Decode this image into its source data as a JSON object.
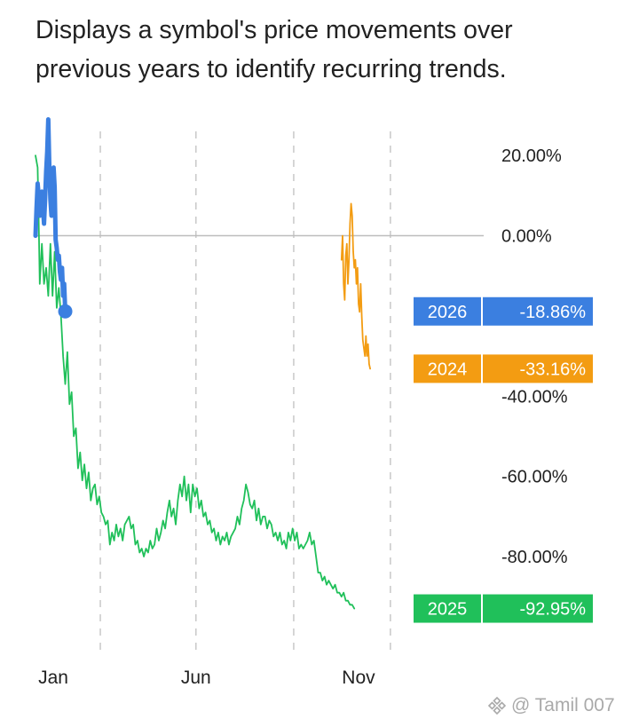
{
  "description": "Displays a symbol's price movements over\nprevious years to identify recurring trends.",
  "watermark": {
    "text": "@ Tamil 007",
    "logo_icon": "binance-logo-icon"
  },
  "chart_data": {
    "type": "line",
    "title": "",
    "xlabel": "",
    "ylabel": "",
    "ylim": [
      -105,
      30
    ],
    "x_unit": "day of year",
    "xlim": [
      1,
      366
    ],
    "x_ticks": [
      {
        "label": "Jan",
        "x": 1
      },
      {
        "label": "Jun",
        "x": 152
      },
      {
        "label": "Nov",
        "x": 305
      }
    ],
    "x_gridlines": [
      62,
      152,
      244,
      335
    ],
    "y_ticks": [
      {
        "label": "20.00%",
        "value": 20
      },
      {
        "label": "0.00%",
        "value": 0
      },
      {
        "label": "-40.00%",
        "value": -40
      },
      {
        "label": "-60.00%",
        "value": -60
      },
      {
        "label": "-80.00%",
        "value": -80
      }
    ],
    "zero_line": true,
    "series": [
      {
        "name": "2025",
        "color": "#20c05a",
        "final_label": "-92.95%",
        "points": [
          [
            1,
            20
          ],
          [
            3,
            17
          ],
          [
            4,
            4
          ],
          [
            5,
            -12
          ],
          [
            7,
            -2
          ],
          [
            9,
            -12
          ],
          [
            11,
            -8
          ],
          [
            13,
            -15
          ],
          [
            15,
            -2
          ],
          [
            17,
            -15
          ],
          [
            19,
            -4
          ],
          [
            21,
            -18
          ],
          [
            23,
            -13
          ],
          [
            25,
            -20
          ],
          [
            27,
            -30
          ],
          [
            29,
            -37
          ],
          [
            31,
            -29
          ],
          [
            33,
            -42
          ],
          [
            35,
            -39
          ],
          [
            37,
            -50
          ],
          [
            39,
            -48
          ],
          [
            41,
            -58
          ],
          [
            43,
            -54
          ],
          [
            45,
            -61
          ],
          [
            47,
            -57
          ],
          [
            49,
            -63
          ],
          [
            51,
            -59
          ],
          [
            53,
            -66
          ],
          [
            55,
            -63
          ],
          [
            57,
            -62
          ],
          [
            59,
            -67
          ],
          [
            61,
            -65
          ],
          [
            63,
            -69
          ],
          [
            65,
            -70
          ],
          [
            67,
            -72
          ],
          [
            69,
            -71
          ],
          [
            71,
            -77
          ],
          [
            73,
            -74
          ],
          [
            75,
            -76
          ],
          [
            77,
            -72
          ],
          [
            79,
            -75
          ],
          [
            81,
            -73
          ],
          [
            83,
            -76
          ],
          [
            85,
            -72
          ],
          [
            87,
            -71
          ],
          [
            89,
            -70
          ],
          [
            91,
            -73
          ],
          [
            93,
            -72
          ],
          [
            95,
            -77
          ],
          [
            97,
            -76
          ],
          [
            99,
            -79
          ],
          [
            101,
            -78
          ],
          [
            103,
            -80
          ],
          [
            105,
            -78
          ],
          [
            107,
            -79
          ],
          [
            109,
            -76
          ],
          [
            111,
            -78
          ],
          [
            113,
            -77
          ],
          [
            115,
            -73
          ],
          [
            117,
            -76
          ],
          [
            119,
            -74
          ],
          [
            121,
            -71
          ],
          [
            123,
            -73
          ],
          [
            125,
            -69
          ],
          [
            127,
            -66
          ],
          [
            129,
            -70
          ],
          [
            131,
            -68
          ],
          [
            133,
            -72
          ],
          [
            135,
            -66
          ],
          [
            137,
            -62
          ],
          [
            139,
            -65
          ],
          [
            141,
            -60
          ],
          [
            143,
            -66
          ],
          [
            145,
            -62
          ],
          [
            147,
            -69
          ],
          [
            149,
            -62
          ],
          [
            151,
            -65
          ],
          [
            153,
            -63
          ],
          [
            155,
            -68
          ],
          [
            157,
            -66
          ],
          [
            159,
            -70
          ],
          [
            161,
            -69
          ],
          [
            163,
            -72
          ],
          [
            165,
            -71
          ],
          [
            167,
            -74
          ],
          [
            169,
            -73
          ],
          [
            171,
            -76
          ],
          [
            173,
            -74
          ],
          [
            175,
            -77
          ],
          [
            177,
            -75
          ],
          [
            179,
            -76
          ],
          [
            181,
            -74
          ],
          [
            183,
            -77
          ],
          [
            185,
            -75
          ],
          [
            187,
            -74
          ],
          [
            189,
            -73
          ],
          [
            191,
            -70
          ],
          [
            193,
            -72
          ],
          [
            195,
            -68
          ],
          [
            197,
            -66
          ],
          [
            199,
            -62
          ],
          [
            201,
            -64
          ],
          [
            203,
            -67
          ],
          [
            205,
            -68
          ],
          [
            207,
            -66
          ],
          [
            209,
            -71
          ],
          [
            211,
            -68
          ],
          [
            213,
            -72
          ],
          [
            215,
            -70
          ],
          [
            217,
            -70
          ],
          [
            219,
            -73
          ],
          [
            221,
            -71
          ],
          [
            223,
            -72
          ],
          [
            225,
            -75
          ],
          [
            227,
            -74
          ],
          [
            229,
            -76
          ],
          [
            231,
            -74
          ],
          [
            233,
            -77
          ],
          [
            235,
            -76
          ],
          [
            237,
            -78
          ],
          [
            239,
            -74
          ],
          [
            241,
            -76
          ],
          [
            243,
            -73
          ],
          [
            245,
            -76
          ],
          [
            247,
            -74
          ],
          [
            249,
            -78
          ],
          [
            251,
            -77
          ],
          [
            253,
            -78
          ],
          [
            255,
            -77
          ],
          [
            257,
            -76
          ],
          [
            259,
            -74
          ],
          [
            261,
            -77
          ],
          [
            263,
            -76
          ],
          [
            265,
            -80
          ],
          [
            267,
            -84
          ],
          [
            269,
            -84
          ],
          [
            271,
            -86
          ],
          [
            273,
            -85
          ],
          [
            275,
            -87
          ],
          [
            277,
            -86
          ],
          [
            279,
            -87
          ],
          [
            281,
            -88
          ],
          [
            283,
            -87
          ],
          [
            285,
            -89
          ],
          [
            287,
            -89
          ],
          [
            289,
            -90
          ],
          [
            291,
            -89
          ],
          [
            293,
            -91
          ],
          [
            295,
            -91
          ],
          [
            297,
            -92
          ],
          [
            299,
            -92
          ],
          [
            301,
            -92.95
          ]
        ]
      },
      {
        "name": "2026",
        "color": "#3b7fe0",
        "final_label": "-18.86%",
        "points": [
          [
            1,
            0
          ],
          [
            2,
            7
          ],
          [
            3,
            13
          ],
          [
            4,
            10
          ],
          [
            5,
            5
          ],
          [
            6,
            6
          ],
          [
            7,
            11
          ],
          [
            8,
            7
          ],
          [
            9,
            3
          ],
          [
            10,
            9
          ],
          [
            11,
            16
          ],
          [
            12,
            21
          ],
          [
            13,
            29
          ],
          [
            14,
            17
          ],
          [
            15,
            9
          ],
          [
            16,
            5
          ],
          [
            17,
            15
          ],
          [
            18,
            17
          ],
          [
            19,
            12
          ],
          [
            20,
            -1
          ],
          [
            21,
            -3
          ],
          [
            22,
            -6
          ],
          [
            23,
            -5
          ],
          [
            24,
            -9
          ],
          [
            25,
            -11
          ],
          [
            26,
            -8
          ],
          [
            27,
            -15
          ],
          [
            28,
            -12
          ],
          [
            29,
            -18.86
          ]
        ]
      },
      {
        "name": "2024",
        "color": "#f39c12",
        "final_label": "-33.16%",
        "points": [
          [
            289,
            -6
          ],
          [
            290,
            0
          ],
          [
            291,
            -12
          ],
          [
            292,
            -16
          ],
          [
            293,
            -5
          ],
          [
            294,
            -2
          ],
          [
            295,
            -12
          ],
          [
            296,
            -6
          ],
          [
            297,
            3
          ],
          [
            298,
            8
          ],
          [
            299,
            5
          ],
          [
            300,
            -4
          ],
          [
            301,
            -8
          ],
          [
            302,
            -6
          ],
          [
            303,
            -12
          ],
          [
            304,
            -8
          ],
          [
            305,
            -17
          ],
          [
            306,
            -19
          ],
          [
            307,
            -12
          ],
          [
            308,
            -20
          ],
          [
            309,
            -26
          ],
          [
            310,
            -28
          ],
          [
            311,
            -30
          ],
          [
            312,
            -25
          ],
          [
            313,
            -30
          ],
          [
            314,
            -27
          ],
          [
            315,
            -32
          ],
          [
            316,
            -33.16
          ]
        ]
      }
    ]
  }
}
